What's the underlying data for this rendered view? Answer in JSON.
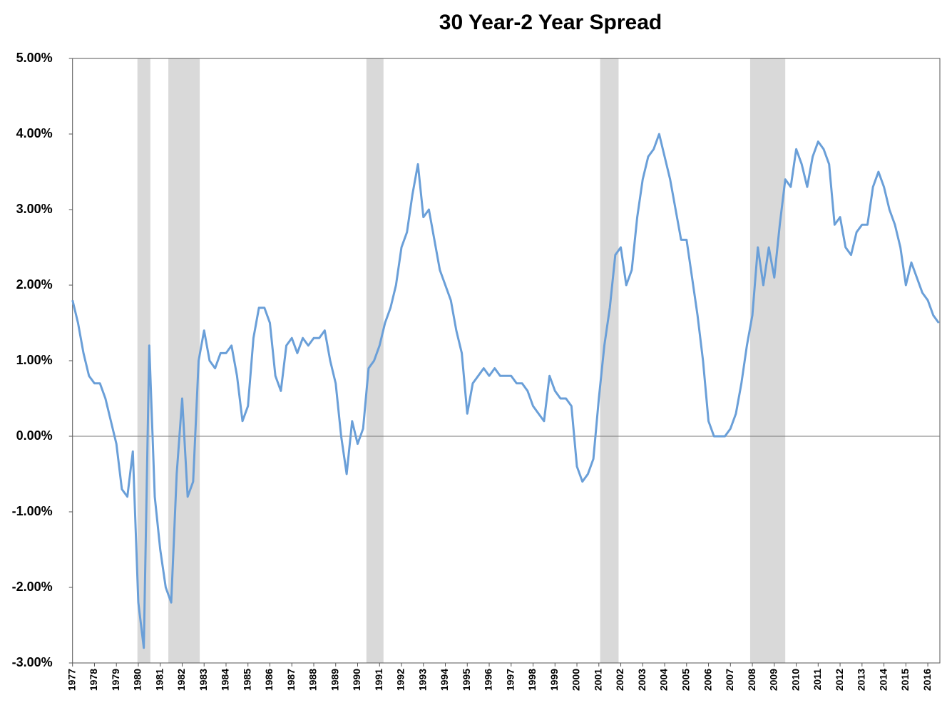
{
  "chart_data": {
    "type": "line",
    "title": "30 Year-2 Year Spread",
    "x": [
      1977,
      1977.25,
      1977.5,
      1977.75,
      1978,
      1978.25,
      1978.5,
      1978.75,
      1979,
      1979.25,
      1979.5,
      1979.75,
      1980,
      1980.25,
      1980.5,
      1980.75,
      1981,
      1981.25,
      1981.5,
      1981.75,
      1982,
      1982.25,
      1982.5,
      1982.75,
      1983,
      1983.25,
      1983.5,
      1983.75,
      1984,
      1984.25,
      1984.5,
      1984.75,
      1985,
      1985.25,
      1985.5,
      1985.75,
      1986,
      1986.25,
      1986.5,
      1986.75,
      1987,
      1987.25,
      1987.5,
      1987.75,
      1988,
      1988.25,
      1988.5,
      1988.75,
      1989,
      1989.25,
      1989.5,
      1989.75,
      1990,
      1990.25,
      1990.5,
      1990.75,
      1991,
      1991.25,
      1991.5,
      1991.75,
      1992,
      1992.25,
      1992.5,
      1992.75,
      1993,
      1993.25,
      1993.5,
      1993.75,
      1994,
      1994.25,
      1994.5,
      1994.75,
      1995,
      1995.25,
      1995.5,
      1995.75,
      1996,
      1996.25,
      1996.5,
      1996.75,
      1997,
      1997.25,
      1997.5,
      1997.75,
      1998,
      1998.25,
      1998.5,
      1998.75,
      1999,
      1999.25,
      1999.5,
      1999.75,
      2000,
      2000.25,
      2000.5,
      2000.75,
      2001,
      2001.25,
      2001.5,
      2001.75,
      2002,
      2002.25,
      2002.5,
      2002.75,
      2003,
      2003.25,
      2003.5,
      2003.75,
      2004,
      2004.25,
      2004.5,
      2004.75,
      2005,
      2005.25,
      2005.5,
      2005.75,
      2006,
      2006.25,
      2006.5,
      2006.75,
      2007,
      2007.25,
      2007.5,
      2007.75,
      2008,
      2008.25,
      2008.5,
      2008.75,
      2009,
      2009.25,
      2009.5,
      2009.75,
      2010,
      2010.25,
      2010.5,
      2010.75,
      2011,
      2011.25,
      2011.5,
      2011.75,
      2012,
      2012.25,
      2012.5,
      2012.75,
      2013,
      2013.25,
      2013.5,
      2013.75,
      2014,
      2014.25,
      2014.5,
      2014.75,
      2015,
      2015.25,
      2015.5,
      2015.75,
      2016,
      2016.25,
      2016.5
    ],
    "series": [
      {
        "color": "#6a9fd8",
        "values": [
          1.8,
          1.5,
          1.1,
          0.8,
          0.7,
          0.7,
          0.5,
          0.2,
          -0.1,
          -0.7,
          -0.8,
          -0.2,
          -2.2,
          -2.8,
          1.2,
          -0.8,
          -1.5,
          -2.0,
          -2.2,
          -0.5,
          0.5,
          -0.8,
          -0.6,
          1.0,
          1.4,
          1.0,
          0.9,
          1.1,
          1.1,
          1.2,
          0.8,
          0.2,
          0.4,
          1.3,
          1.7,
          1.7,
          1.5,
          0.8,
          0.6,
          1.2,
          1.3,
          1.1,
          1.3,
          1.2,
          1.3,
          1.3,
          1.4,
          1.0,
          0.7,
          0.0,
          -0.5,
          0.2,
          -0.1,
          0.1,
          0.9,
          1.0,
          1.2,
          1.5,
          1.7,
          2.0,
          2.5,
          2.7,
          3.2,
          3.6,
          2.9,
          3.0,
          2.6,
          2.2,
          2.0,
          1.8,
          1.4,
          1.1,
          0.3,
          0.7,
          0.8,
          0.9,
          0.8,
          0.9,
          0.8,
          0.8,
          0.8,
          0.7,
          0.7,
          0.6,
          0.4,
          0.3,
          0.2,
          0.8,
          0.6,
          0.5,
          0.5,
          0.4,
          -0.4,
          -0.6,
          -0.5,
          -0.3,
          0.5,
          1.2,
          1.7,
          2.4,
          2.5,
          2.0,
          2.2,
          2.9,
          3.4,
          3.7,
          3.8,
          4.0,
          3.7,
          3.4,
          3.0,
          2.6,
          2.6,
          2.1,
          1.6,
          1.0,
          0.2,
          0.0,
          0.0,
          0.0,
          0.1,
          0.3,
          0.7,
          1.2,
          1.6,
          2.5,
          2.0,
          2.5,
          2.1,
          2.8,
          3.4,
          3.3,
          3.8,
          3.6,
          3.3,
          3.7,
          3.9,
          3.8,
          3.6,
          2.8,
          2.9,
          2.5,
          2.4,
          2.7,
          2.8,
          2.8,
          3.3,
          3.5,
          3.3,
          3.0,
          2.8,
          2.5,
          2.0,
          2.3,
          2.1,
          1.9,
          1.8,
          1.6,
          1.5
        ]
      }
    ],
    "shaded_ranges": [
      [
        1979.96,
        1980.55
      ],
      [
        1981.37,
        1982.8
      ],
      [
        1990.4,
        1991.18
      ],
      [
        2001.06,
        2001.9
      ],
      [
        2007.9,
        2009.5
      ]
    ],
    "xlim": [
      1977,
      2016.55
    ],
    "xticks": [
      1977,
      1978,
      1979,
      1980,
      1981,
      1982,
      1983,
      1984,
      1985,
      1986,
      1987,
      1988,
      1989,
      1990,
      1991,
      1992,
      1993,
      1994,
      1995,
      1996,
      1997,
      1998,
      1999,
      2000,
      2001,
      2002,
      2003,
      2004,
      2005,
      2006,
      2007,
      2008,
      2009,
      2010,
      2011,
      2012,
      2013,
      2014,
      2015,
      2016
    ],
    "ylim": [
      -3,
      5
    ],
    "yticks": [
      {
        "value": -3,
        "label": "-3.00%"
      },
      {
        "value": -2,
        "label": "-2.00%"
      },
      {
        "value": -1,
        "label": "-1.00%"
      },
      {
        "value": 0,
        "label": "0.00%"
      },
      {
        "value": 1,
        "label": "1.00%"
      },
      {
        "value": 2,
        "label": "2.00%"
      },
      {
        "value": 3,
        "label": "3.00%"
      },
      {
        "value": 4,
        "label": "4.00%"
      },
      {
        "value": 5,
        "label": "5.00%"
      }
    ],
    "grid": false
  }
}
